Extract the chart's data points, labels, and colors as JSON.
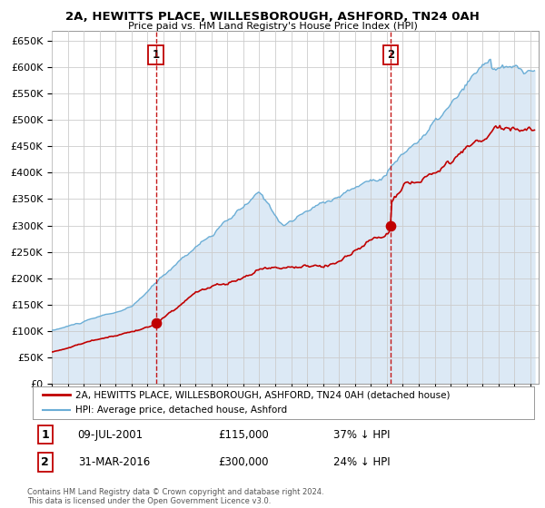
{
  "title": "2A, HEWITTS PLACE, WILLESBOROUGH, ASHFORD, TN24 0AH",
  "subtitle": "Price paid vs. HM Land Registry's House Price Index (HPI)",
  "ylim": [
    0,
    670000
  ],
  "yticks": [
    0,
    50000,
    100000,
    150000,
    200000,
    250000,
    300000,
    350000,
    400000,
    450000,
    500000,
    550000,
    600000,
    650000
  ],
  "xlim_start": 1995.0,
  "xlim_end": 2025.5,
  "hpi_color": "#6baed6",
  "hpi_fill_color": "#dce9f5",
  "price_color": "#c00000",
  "dashed_color": "#c00000",
  "marker1_date": 2001.52,
  "marker1_price": 115000,
  "marker2_date": 2016.25,
  "marker2_price": 300000,
  "legend_label1": "2A, HEWITTS PLACE, WILLESBOROUGH, ASHFORD, TN24 0AH (detached house)",
  "legend_label2": "HPI: Average price, detached house, Ashford",
  "footnote": "Contains HM Land Registry data © Crown copyright and database right 2024.\nThis data is licensed under the Open Government Licence v3.0.",
  "background_color": "#ffffff",
  "grid_color": "#cccccc"
}
